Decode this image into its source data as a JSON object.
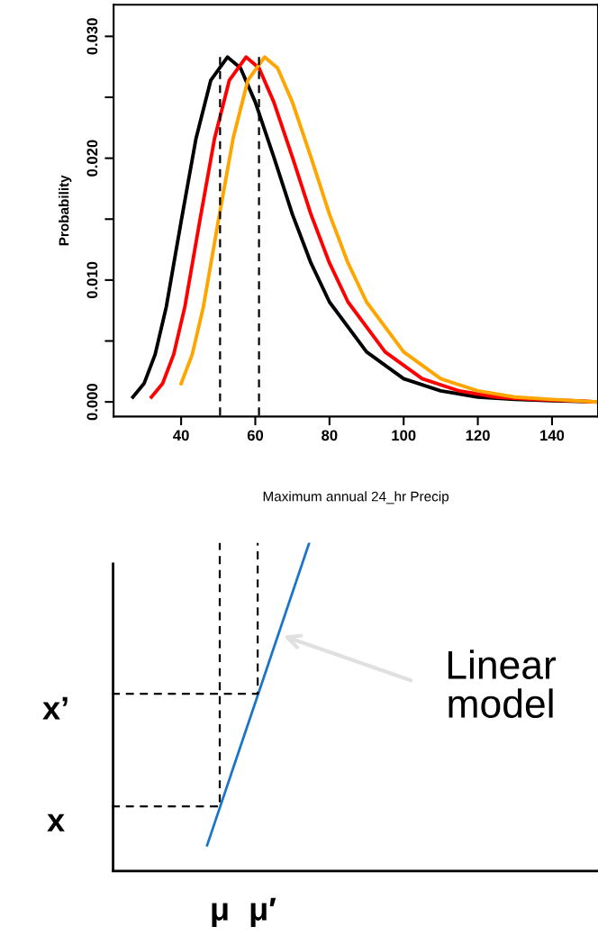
{
  "chart_data": [
    {
      "type": "line",
      "xlabel": "Maximum annual 24_hr Precip",
      "ylabel": "Probability",
      "xlim": [
        21.8,
        152.4
      ],
      "ylim": [
        -0.0012,
        0.0326
      ],
      "xticks": [
        40,
        60,
        80,
        100,
        120,
        140
      ],
      "yticks": [
        {
          "value": 0.0,
          "label": "0.000"
        },
        {
          "value": 0.005,
          "label": null
        },
        {
          "value": 0.01,
          "label": "0.010"
        },
        {
          "value": 0.015,
          "label": null
        },
        {
          "value": 0.02,
          "label": "0.020"
        },
        {
          "value": 0.025,
          "label": null
        },
        {
          "value": 0.03,
          "label": "0.030"
        }
      ],
      "grid": false,
      "legend": false,
      "marker": "none",
      "series": [
        {
          "color": "#000000",
          "line_style": "solid",
          "x": [
            27,
            30,
            33,
            36,
            40,
            44,
            48,
            52.5,
            56,
            60,
            65,
            70,
            75,
            80,
            90,
            100,
            110,
            120,
            130,
            140,
            152
          ],
          "values": [
            0.0004,
            0.0015,
            0.0039,
            0.0078,
            0.0148,
            0.0216,
            0.0264,
            0.0283,
            0.0274,
            0.0246,
            0.0201,
            0.0154,
            0.0114,
            0.0082,
            0.0041,
            0.0019,
            0.0009,
            0.0004,
            0.0002,
            0.0001,
            0.0
          ]
        },
        {
          "color": "#ff0000",
          "line_style": "solid",
          "x": [
            32,
            35,
            38,
            41,
            45,
            49,
            53,
            57.5,
            61,
            65,
            70,
            75,
            80,
            85,
            95,
            105,
            115,
            125,
            135,
            145,
            152
          ],
          "values": [
            0.0004,
            0.0015,
            0.0039,
            0.0078,
            0.0148,
            0.0216,
            0.0264,
            0.0283,
            0.0274,
            0.0246,
            0.0201,
            0.0154,
            0.0114,
            0.0082,
            0.0041,
            0.0019,
            0.0009,
            0.0004,
            0.0002,
            0.0001,
            0.0
          ]
        },
        {
          "color": "#ffa500",
          "line_style": "solid",
          "x": [
            40,
            43,
            46,
            50,
            54,
            58,
            62.5,
            66,
            70,
            75,
            80,
            85,
            90,
            100,
            110,
            120,
            130,
            140,
            152
          ],
          "values": [
            0.0015,
            0.0039,
            0.0078,
            0.0148,
            0.0216,
            0.0264,
            0.0283,
            0.0274,
            0.0246,
            0.0201,
            0.0154,
            0.0114,
            0.0082,
            0.0041,
            0.0019,
            0.0009,
            0.0004,
            0.0002,
            0.0
          ]
        },
        {
          "color": "#000000",
          "line_style": "dashed",
          "x": [
            50.5,
            50.5
          ],
          "values": [
            0.0283,
            -0.0012
          ]
        },
        {
          "color": "#000000",
          "line_style": "dashed",
          "x": [
            61,
            61
          ],
          "values": [
            0.0283,
            -0.0012
          ]
        }
      ]
    },
    {
      "type": "other",
      "annotations": [
        "Linear\nmodel",
        "μ",
        "μ′",
        "x",
        "x’"
      ]
    }
  ]
}
